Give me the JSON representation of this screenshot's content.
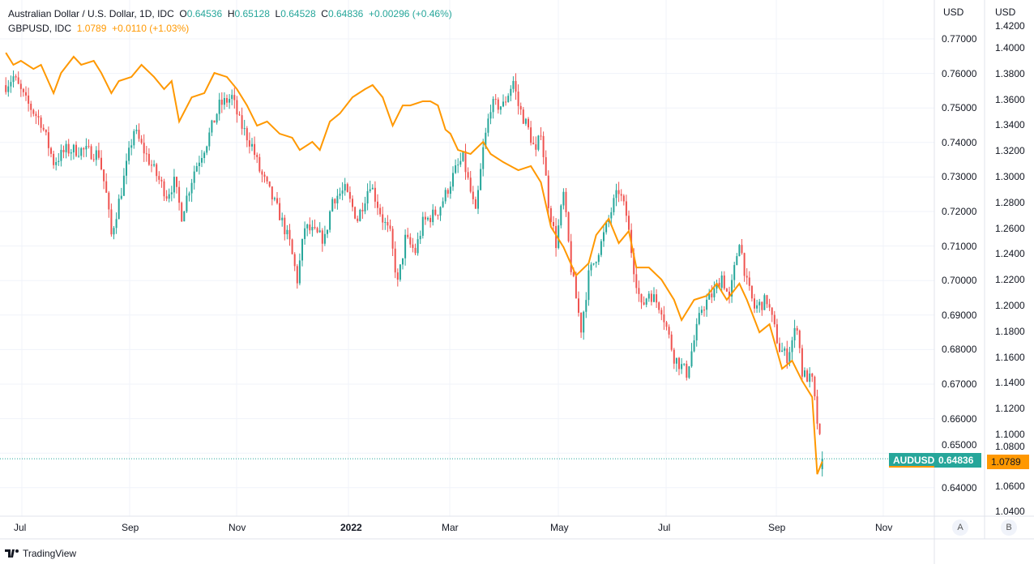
{
  "legend": {
    "main_title": "Australian Dollar / U.S. Dollar, 1D, IDC",
    "o_label": "O",
    "o": "0.64536",
    "h_label": "H",
    "h": "0.65128",
    "l_label": "L",
    "l": "0.64528",
    "c_label": "C",
    "c": "0.64836",
    "change": "+0.00296 (+0.46%)",
    "compare_title": "GBPUSD, IDC",
    "compare_last": "1.0789",
    "compare_change": "+0.0110 (+1.03%)"
  },
  "axes": {
    "a_currency": "USD",
    "b_currency": "USD",
    "a_button": "A",
    "b_button": "B",
    "a_ticks": [
      "0.77000",
      "0.76000",
      "0.75000",
      "0.74000",
      "0.73000",
      "0.72000",
      "0.71000",
      "0.70000",
      "0.69000",
      "0.68000",
      "0.67000",
      "0.66000",
      "0.65000",
      "0.64000"
    ],
    "b_ticks": [
      "1.4200",
      "1.4000",
      "1.3800",
      "1.3600",
      "1.3400",
      "1.3200",
      "1.3000",
      "1.2800",
      "1.2600",
      "1.2400",
      "1.2200",
      "1.2000",
      "1.1800",
      "1.1600",
      "1.1400",
      "1.1200",
      "1.1000",
      "1.0800",
      "1.0600",
      "1.0400"
    ],
    "time_ticks": [
      "Jul",
      "Sep",
      "Nov",
      "2022",
      "Mar",
      "May",
      "Jul",
      "Sep",
      "Nov"
    ]
  },
  "tags": {
    "symbol": "AUDUSD",
    "last": "0.64836",
    "compare_last": "1.0789"
  },
  "colors": {
    "up": "#26a69a",
    "down": "#ef5350",
    "compare": "#ff9800"
  },
  "footer": {
    "brand": "TradingView"
  },
  "chart_data": {
    "type": "candlestick+line",
    "audusd": [
      [
        2,
        0.7566
      ],
      [
        5,
        0.759
      ],
      [
        10,
        0.7519
      ],
      [
        16,
        0.746
      ],
      [
        21,
        0.7343
      ],
      [
        26,
        0.7378
      ],
      [
        32,
        0.7378
      ],
      [
        39,
        0.7366
      ],
      [
        42,
        0.7249
      ],
      [
        44,
        0.7131
      ],
      [
        48,
        0.7261
      ],
      [
        53,
        0.7437
      ],
      [
        56,
        0.739
      ],
      [
        61,
        0.7319
      ],
      [
        66,
        0.7249
      ],
      [
        69,
        0.7284
      ],
      [
        72,
        0.719
      ],
      [
        77,
        0.7319
      ],
      [
        82,
        0.7402
      ],
      [
        87,
        0.7507
      ],
      [
        92,
        0.7531
      ],
      [
        95,
        0.746
      ],
      [
        100,
        0.739
      ],
      [
        103,
        0.7319
      ],
      [
        106,
        0.7272
      ],
      [
        111,
        0.719
      ],
      [
        115,
        0.7108
      ],
      [
        118,
        0.7002
      ],
      [
        121,
        0.7155
      ],
      [
        126,
        0.7131
      ],
      [
        129,
        0.712
      ],
      [
        132,
        0.7237
      ],
      [
        137,
        0.7261
      ],
      [
        142,
        0.7178
      ],
      [
        147,
        0.7284
      ],
      [
        152,
        0.7178
      ],
      [
        155,
        0.7131
      ],
      [
        158,
        0.699
      ],
      [
        161,
        0.712
      ],
      [
        165,
        0.7084
      ],
      [
        168,
        0.7167
      ],
      [
        174,
        0.7202
      ],
      [
        177,
        0.7249
      ],
      [
        181,
        0.7319
      ],
      [
        184,
        0.7355
      ],
      [
        189,
        0.719
      ],
      [
        192,
        0.7378
      ],
      [
        195,
        0.7507
      ],
      [
        200,
        0.7507
      ],
      [
        204,
        0.7578
      ],
      [
        206,
        0.7507
      ],
      [
        210,
        0.7437
      ],
      [
        213,
        0.7366
      ],
      [
        215,
        0.7437
      ],
      [
        218,
        0.7225
      ],
      [
        221,
        0.7108
      ],
      [
        224,
        0.7249
      ],
      [
        227,
        0.7037
      ],
      [
        231,
        0.6861
      ],
      [
        234,
        0.7014
      ],
      [
        239,
        0.7108
      ],
      [
        244,
        0.7225
      ],
      [
        246,
        0.7261
      ],
      [
        249,
        0.719
      ],
      [
        252,
        0.7037
      ],
      [
        255,
        0.692
      ],
      [
        258,
        0.6967
      ],
      [
        263,
        0.692
      ],
      [
        268,
        0.6779
      ],
      [
        273,
        0.6732
      ],
      [
        276,
        0.6826
      ],
      [
        279,
        0.692
      ],
      [
        284,
        0.6967
      ],
      [
        287,
        0.7014
      ],
      [
        290,
        0.6943
      ],
      [
        294,
        0.712
      ],
      [
        297,
        0.699
      ],
      [
        300,
        0.692
      ],
      [
        305,
        0.6943
      ],
      [
        310,
        0.6802
      ],
      [
        313,
        0.6779
      ],
      [
        317,
        0.6873
      ],
      [
        319,
        0.6732
      ],
      [
        323,
        0.6708
      ],
      [
        325,
        0.6591
      ],
      [
        327,
        0.64836
      ]
    ],
    "gbpusd": [
      [
        2,
        1.3962
      ],
      [
        5,
        1.3868
      ],
      [
        8,
        1.3899
      ],
      [
        13,
        1.3836
      ],
      [
        16,
        1.3868
      ],
      [
        21,
        1.3648
      ],
      [
        24,
        1.3805
      ],
      [
        29,
        1.3931
      ],
      [
        32,
        1.3868
      ],
      [
        37,
        1.3899
      ],
      [
        40,
        1.3805
      ],
      [
        44,
        1.3648
      ],
      [
        47,
        1.3742
      ],
      [
        52,
        1.3774
      ],
      [
        56,
        1.3868
      ],
      [
        61,
        1.3774
      ],
      [
        65,
        1.3679
      ],
      [
        68,
        1.3742
      ],
      [
        71,
        1.3428
      ],
      [
        76,
        1.3616
      ],
      [
        81,
        1.3648
      ],
      [
        85,
        1.3805
      ],
      [
        90,
        1.3774
      ],
      [
        94,
        1.3679
      ],
      [
        98,
        1.3553
      ],
      [
        102,
        1.3396
      ],
      [
        106,
        1.3428
      ],
      [
        111,
        1.3333
      ],
      [
        116,
        1.3302
      ],
      [
        119,
        1.3207
      ],
      [
        124,
        1.327
      ],
      [
        127,
        1.3207
      ],
      [
        131,
        1.3428
      ],
      [
        135,
        1.3491
      ],
      [
        140,
        1.3616
      ],
      [
        145,
        1.3679
      ],
      [
        148,
        1.3711
      ],
      [
        152,
        1.3616
      ],
      [
        156,
        1.3396
      ],
      [
        160,
        1.3553
      ],
      [
        163,
        1.3553
      ],
      [
        168,
        1.3585
      ],
      [
        171,
        1.3585
      ],
      [
        174,
        1.3553
      ],
      [
        177,
        1.3365
      ],
      [
        179,
        1.3333
      ],
      [
        182,
        1.3207
      ],
      [
        187,
        1.3176
      ],
      [
        192,
        1.327
      ],
      [
        195,
        1.3176
      ],
      [
        200,
        1.3113
      ],
      [
        206,
        1.305
      ],
      [
        211,
        1.3082
      ],
      [
        215,
        1.2956
      ],
      [
        219,
        1.261
      ],
      [
        224,
        1.2453
      ],
      [
        229,
        1.2233
      ],
      [
        234,
        1.2327
      ],
      [
        237,
        1.2547
      ],
      [
        242,
        1.2673
      ],
      [
        246,
        1.2484
      ],
      [
        250,
        1.2578
      ],
      [
        253,
        1.2295
      ],
      [
        258,
        1.2295
      ],
      [
        263,
        1.2201
      ],
      [
        268,
        1.2044
      ],
      [
        271,
        1.1887
      ],
      [
        276,
        1.2044
      ],
      [
        281,
        1.2075
      ],
      [
        285,
        1.217
      ],
      [
        289,
        1.2044
      ],
      [
        294,
        1.217
      ],
      [
        297,
        1.2044
      ],
      [
        302,
        1.1792
      ],
      [
        306,
        1.1855
      ],
      [
        311,
        1.1509
      ],
      [
        315,
        1.1572
      ],
      [
        319,
        1.1415
      ],
      [
        323,
        1.1289
      ],
      [
        325,
        1.0691
      ],
      [
        327,
        1.0789
      ]
    ],
    "a_range": [
      0.637,
      0.7811
    ],
    "b_range": [
      1.03,
      1.425
    ]
  }
}
